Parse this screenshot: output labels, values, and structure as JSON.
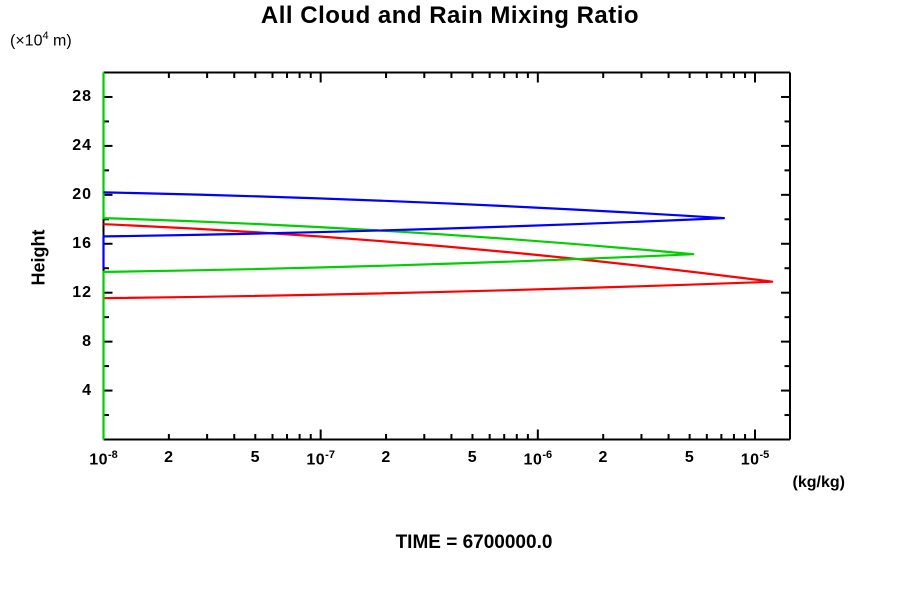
{
  "header": {
    "title": "All Cloud and Rain Mixing Ratio"
  },
  "footer": {
    "time_label": "TIME = 6700000.0"
  },
  "y_axis": {
    "label": "Height",
    "units_prefix": "(×10",
    "units_sup": "4",
    "units_suffix": " m)",
    "range": [
      0,
      30
    ],
    "major_ticks": [
      4,
      8,
      12,
      16,
      20,
      24,
      28
    ],
    "minor_ticks": [
      2,
      6,
      10,
      14,
      18,
      22,
      26,
      30
    ]
  },
  "x_axis": {
    "units": "(kg/kg)",
    "scale": "log",
    "range": [
      1e-08,
      1.45e-05
    ],
    "labeled_ticks": [
      {
        "value": 1e-08,
        "text": "10",
        "sup": "-8"
      },
      {
        "value": 2e-08,
        "text": "2"
      },
      {
        "value": 5e-08,
        "text": "5"
      },
      {
        "value": 1e-07,
        "text": "10",
        "sup": "-7"
      },
      {
        "value": 2e-07,
        "text": "2"
      },
      {
        "value": 5e-07,
        "text": "5"
      },
      {
        "value": 1e-06,
        "text": "10",
        "sup": "-6"
      },
      {
        "value": 2e-06,
        "text": "2"
      },
      {
        "value": 5e-06,
        "text": "5"
      },
      {
        "value": 1e-05,
        "text": "10",
        "sup": "-5"
      }
    ],
    "minor_tick_decades": [
      -8,
      -7,
      -6
    ],
    "minor_tick_multipliers": [
      3,
      4,
      6,
      7,
      8,
      9
    ]
  },
  "chart_data": {
    "type": "line",
    "title": "All Cloud and Rain Mixing Ratio",
    "xlabel": "(kg/kg)",
    "ylabel": "Height (×10^4 m)",
    "x_scale": "log",
    "xlim": [
      1e-08,
      1.45e-05
    ],
    "ylim": [
      0,
      30
    ],
    "grid": false,
    "legend": "none",
    "annotations": {
      "time": "TIME = 6700000.0"
    },
    "axis_color": "#000000",
    "series": [
      {
        "name": "red-profile",
        "color": "#ff0000",
        "points": [
          {
            "mixing_ratio": 1e-08,
            "height": 11.55
          },
          {
            "mixing_ratio": 1.2e-05,
            "height": 12.9
          },
          {
            "mixing_ratio": 1e-08,
            "height": 17.6
          }
        ]
      },
      {
        "name": "green-profile",
        "color": "#00d000",
        "points": [
          {
            "mixing_ratio": 1e-08,
            "height": 0
          },
          {
            "mixing_ratio": 1e-08,
            "height": 13.7
          },
          {
            "mixing_ratio": 5.2e-06,
            "height": 15.15
          },
          {
            "mixing_ratio": 1e-08,
            "height": 18.1
          },
          {
            "mixing_ratio": 1e-08,
            "height": 30
          }
        ]
      },
      {
        "name": "blue-profile",
        "color": "#0000ff",
        "points": [
          {
            "mixing_ratio": 1e-08,
            "height": 14.0
          },
          {
            "mixing_ratio": 1e-08,
            "height": 16.6
          },
          {
            "mixing_ratio": 7.2e-06,
            "height": 18.1
          },
          {
            "mixing_ratio": 1e-08,
            "height": 20.2
          }
        ]
      }
    ]
  }
}
